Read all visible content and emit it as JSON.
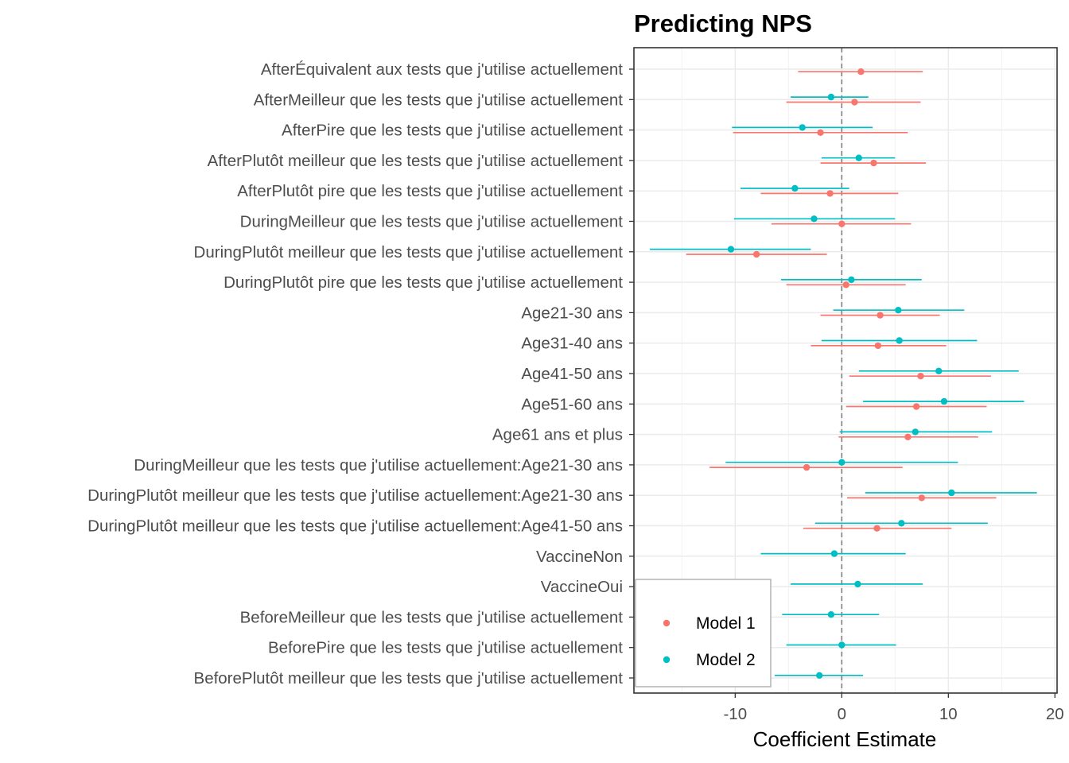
{
  "chart_data": {
    "type": "scatter",
    "subtype": "coefficient-plot",
    "title": "Predicting NPS",
    "xlabel": "Coefficient Estimate",
    "ylabel": "",
    "xlim": [
      -19.5,
      20.2
    ],
    "xticks": [
      -10,
      0,
      10,
      20
    ],
    "xtick_labels": [
      "-10",
      "0",
      "10",
      "20"
    ],
    "reference_line": 0,
    "grid": true,
    "legend_position": "bottom-left",
    "categories": [
      "AfterÉquivalent aux tests que j'utilise actuellement",
      "AfterMeilleur que les tests que j'utilise actuellement",
      "AfterPire que les tests que j'utilise actuellement",
      "AfterPlutôt meilleur que les tests que j'utilise actuellement",
      "AfterPlutôt pire que les tests que j'utilise actuellement",
      "DuringMeilleur que les tests que j'utilise actuellement",
      "DuringPlutôt meilleur que les tests que j'utilise actuellement",
      "DuringPlutôt pire que les tests que j'utilise actuellement",
      "Age21-30 ans",
      "Age31-40 ans",
      "Age41-50 ans",
      "Age51-60 ans",
      "Age61 ans et plus",
      "DuringMeilleur que les tests que j'utilise actuellement:Age21-30 ans",
      "DuringPlutôt meilleur que les tests que j'utilise actuellement:Age21-30 ans",
      "DuringPlutôt meilleur que les tests que j'utilise actuellement:Age41-50 ans",
      "VaccineNon",
      "VaccineOui",
      "BeforeMeilleur que les tests que j'utilise actuellement",
      "BeforePire que les tests que j'utilise actuellement",
      "BeforePlutôt meilleur que les tests que j'utilise actuellement"
    ],
    "series": [
      {
        "name": "Model 1",
        "color": "#F8766D",
        "estimates": [
          1.8,
          1.2,
          -2.0,
          3.0,
          -1.1,
          0.0,
          -8.0,
          0.4,
          3.6,
          3.4,
          7.4,
          7.0,
          6.2,
          -3.3,
          7.5,
          3.3,
          null,
          null,
          null,
          null,
          null
        ],
        "lower": [
          -4.1,
          -5.2,
          -10.2,
          -2.0,
          -7.6,
          -6.6,
          -14.6,
          -5.2,
          -2.0,
          -2.9,
          0.7,
          0.4,
          -0.3,
          -12.4,
          0.5,
          -3.6,
          null,
          null,
          null,
          null,
          null
        ],
        "upper": [
          7.6,
          7.4,
          6.2,
          7.9,
          5.3,
          6.5,
          -1.4,
          6.0,
          9.2,
          9.8,
          14.0,
          13.6,
          12.8,
          5.7,
          14.5,
          10.3,
          null,
          null,
          null,
          null,
          null
        ]
      },
      {
        "name": "Model 2",
        "color": "#00BFC4",
        "estimates": [
          null,
          -1.0,
          -3.7,
          1.6,
          -4.4,
          -2.6,
          -10.4,
          0.9,
          5.3,
          5.4,
          9.1,
          9.6,
          6.9,
          0.0,
          10.3,
          5.6,
          -0.7,
          1.5,
          -1.0,
          0.0,
          -2.1
        ],
        "lower": [
          null,
          -4.8,
          -10.3,
          -1.9,
          -9.5,
          -10.1,
          -18.0,
          -5.7,
          -0.8,
          -1.9,
          1.6,
          2.0,
          -0.2,
          -10.9,
          2.2,
          -2.5,
          -7.6,
          -4.8,
          -5.6,
          -5.2,
          -6.3
        ],
        "upper": [
          null,
          2.5,
          2.9,
          5.0,
          0.7,
          5.0,
          -2.9,
          7.5,
          11.5,
          12.7,
          16.6,
          17.1,
          14.1,
          10.9,
          18.3,
          13.7,
          6.0,
          7.6,
          3.5,
          5.1,
          2.0
        ]
      }
    ]
  }
}
